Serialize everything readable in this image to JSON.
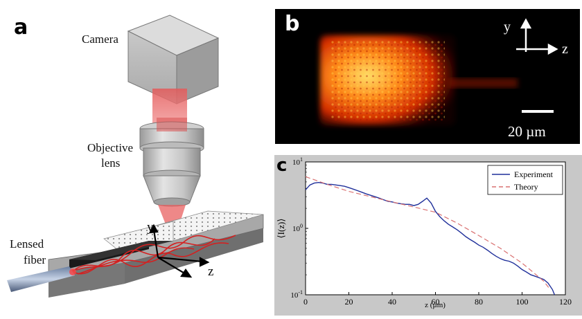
{
  "panels": {
    "a": {
      "letter": "a",
      "labels": {
        "camera": "Camera",
        "objective_line1": "Objective",
        "objective_line2": "lens",
        "fiber_line1": "Lensed",
        "fiber_line2": "fiber",
        "axis_y": "y",
        "axis_z": "z"
      }
    },
    "b": {
      "letter": "b",
      "axis_y": "y",
      "axis_z": "z",
      "scale_bar": "20 µm"
    },
    "c": {
      "letter": "c",
      "ylabel": "⟨I(z)⟩",
      "xlabel": "z (µm)"
    }
  },
  "chart_data": {
    "type": "line",
    "xlabel": "z (µm)",
    "ylabel": "⟨I(z)⟩",
    "xlim": [
      0,
      120
    ],
    "ylim": [
      0.1,
      10
    ],
    "y_scale": "log",
    "grid": false,
    "legend_position": "top-right",
    "xticks": [
      "0",
      "20",
      "40",
      "60",
      "80",
      "100",
      "120"
    ],
    "yticks": [
      "10^-1",
      "10^0",
      "10^1"
    ],
    "series": [
      {
        "name": "Experiment",
        "color": "#1f2f9a",
        "style": "solid",
        "x": [
          0,
          2,
          4,
          6,
          8,
          10,
          12,
          14,
          16,
          18,
          20,
          22,
          24,
          26,
          28,
          30,
          32,
          34,
          36,
          38,
          40,
          42,
          44,
          46,
          48,
          50,
          52,
          54,
          56,
          58,
          60,
          62,
          64,
          66,
          68,
          70,
          72,
          74,
          76,
          78,
          80,
          82,
          84,
          86,
          88,
          90,
          92,
          94,
          96,
          98,
          100,
          102,
          104,
          106,
          108,
          110,
          112,
          114,
          115
        ],
        "y": [
          3.8,
          4.5,
          4.8,
          4.9,
          4.8,
          4.6,
          4.6,
          4.5,
          4.4,
          4.3,
          4.1,
          3.9,
          3.7,
          3.5,
          3.3,
          3.15,
          3.0,
          2.85,
          2.7,
          2.55,
          2.5,
          2.4,
          2.35,
          2.3,
          2.3,
          2.2,
          2.3,
          2.55,
          2.85,
          2.4,
          1.8,
          1.5,
          1.3,
          1.15,
          1.05,
          0.95,
          0.85,
          0.75,
          0.68,
          0.62,
          0.56,
          0.52,
          0.47,
          0.42,
          0.38,
          0.35,
          0.33,
          0.32,
          0.3,
          0.27,
          0.24,
          0.22,
          0.2,
          0.19,
          0.18,
          0.17,
          0.15,
          0.12,
          0.1
        ]
      },
      {
        "name": "Theory",
        "color": "#d97070",
        "style": "dashed",
        "x": [
          0,
          10,
          20,
          30,
          40,
          50,
          60,
          70,
          80,
          90,
          100,
          105,
          110,
          113
        ],
        "y": [
          6.0,
          4.6,
          3.6,
          3.0,
          2.5,
          2.1,
          1.75,
          1.2,
          0.78,
          0.5,
          0.3,
          0.22,
          0.16,
          0.12
        ]
      }
    ]
  }
}
